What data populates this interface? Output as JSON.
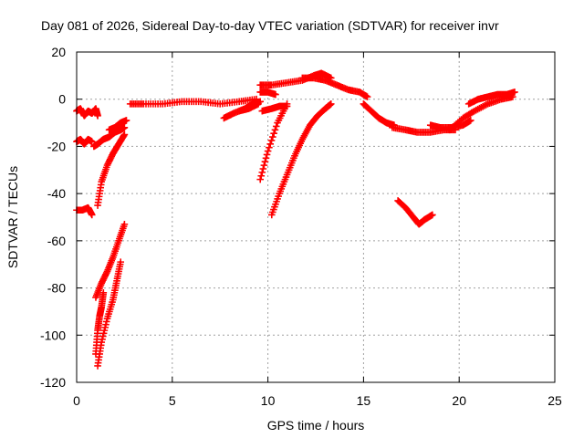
{
  "chart_data": {
    "type": "scatter",
    "title": "Day 081 of 2026, Sidereal Day-to-day VTEC variation (SDTVAR) for receiver invr",
    "xlabel": "GPS time / hours",
    "ylabel": "SDTVAR / TECUs",
    "xlim": [
      0,
      25
    ],
    "ylim": [
      -120,
      20
    ],
    "xticks": [
      0,
      5,
      10,
      15,
      20,
      25
    ],
    "yticks": [
      20,
      0,
      -20,
      -40,
      -60,
      -80,
      -100,
      -120
    ],
    "grid": true,
    "marker": "plus",
    "color": "#ff0000",
    "series": [
      {
        "name": "s1",
        "x": [
          0.0,
          0.2,
          0.4,
          0.6,
          0.8,
          1.0,
          1.1
        ],
        "y": [
          -5,
          -4,
          -7,
          -5,
          -6,
          -4,
          -7
        ]
      },
      {
        "name": "s2",
        "x": [
          0.0,
          0.2,
          0.4,
          0.6,
          0.8
        ],
        "y": [
          -18,
          -17,
          -19,
          -17,
          -18
        ]
      },
      {
        "name": "s3",
        "x": [
          0.9,
          1.1,
          1.4,
          1.7,
          2.0,
          2.3,
          2.5
        ],
        "y": [
          -20,
          -19,
          -17,
          -16,
          -14,
          -13,
          -12
        ]
      },
      {
        "name": "s4",
        "x": [
          1.1,
          1.3,
          1.6,
          1.9,
          2.2,
          2.5
        ],
        "y": [
          -45,
          -35,
          -28,
          -23,
          -19,
          -15
        ]
      },
      {
        "name": "s5",
        "x": [
          1.7,
          2.0,
          2.3,
          2.6
        ],
        "y": [
          -13,
          -12,
          -10,
          -9
        ]
      },
      {
        "name": "s6",
        "x": [
          0.0,
          0.3,
          0.6,
          0.8
        ],
        "y": [
          -47,
          -47,
          -46,
          -49
        ]
      },
      {
        "name": "s7",
        "x": [
          1.0,
          1.3,
          1.6,
          1.9,
          2.2,
          2.5
        ],
        "y": [
          -84,
          -78,
          -73,
          -67,
          -60,
          -53
        ]
      },
      {
        "name": "s8",
        "x": [
          1.1,
          1.3,
          1.6,
          1.9,
          2.1,
          2.3
        ],
        "y": [
          -113,
          -103,
          -93,
          -85,
          -77,
          -69
        ]
      },
      {
        "name": "s9",
        "x": [
          1.0,
          1.1,
          1.2,
          1.3,
          1.4
        ],
        "y": [
          -108,
          -98,
          -92,
          -88,
          -82
        ]
      },
      {
        "name": "s10",
        "x": [
          2.8,
          3.5,
          4.5,
          5.5,
          6.5,
          7.5,
          8.5,
          9.4
        ],
        "y": [
          -2,
          -2,
          -2,
          -1,
          -1,
          -2,
          -1,
          0
        ]
      },
      {
        "name": "s11",
        "x": [
          7.7,
          8.2,
          8.8,
          9.2,
          9.6
        ],
        "y": [
          -8,
          -6,
          -4,
          -2,
          -1
        ]
      },
      {
        "name": "s12",
        "x": [
          8.5,
          9.0,
          9.5
        ],
        "y": [
          -5,
          -4,
          -2
        ]
      },
      {
        "name": "s13",
        "x": [
          9.6,
          10.2,
          11.0,
          11.8,
          12.4,
          12.8,
          13.3
        ],
        "y": [
          6,
          6,
          7,
          8,
          10,
          11,
          9
        ]
      },
      {
        "name": "s14",
        "x": [
          9.6,
          10.0,
          10.4
        ],
        "y": [
          3,
          3,
          2
        ]
      },
      {
        "name": "s15",
        "x": [
          11.8,
          12.4,
          13.0,
          13.6,
          14.2,
          14.8,
          15.2
        ],
        "y": [
          9,
          9,
          8,
          6,
          4,
          3,
          1
        ]
      },
      {
        "name": "s16",
        "x": [
          15.0,
          15.4,
          15.8,
          16.2,
          16.6
        ],
        "y": [
          -2,
          -5,
          -8,
          -10,
          -11
        ]
      },
      {
        "name": "s17",
        "x": [
          16.5,
          17.2,
          17.8,
          18.5,
          19.2,
          19.8
        ],
        "y": [
          -12,
          -13,
          -14,
          -14,
          -13,
          -13
        ]
      },
      {
        "name": "s18",
        "x": [
          18.5,
          19.0,
          19.6,
          20.2,
          20.6
        ],
        "y": [
          -11,
          -12,
          -12,
          -11,
          -9
        ]
      },
      {
        "name": "s19",
        "x": [
          19.5,
          20.2,
          20.8,
          21.5,
          22.2,
          22.8
        ],
        "y": [
          -13,
          -8,
          -5,
          -2,
          0,
          1
        ]
      },
      {
        "name": "s20",
        "x": [
          20.5,
          21.0,
          21.5,
          22.0,
          22.5,
          22.9
        ],
        "y": [
          -2,
          0,
          1,
          2,
          2,
          3
        ]
      },
      {
        "name": "s21",
        "x": [
          9.6,
          10.0,
          10.5,
          11.0
        ],
        "y": [
          -34,
          -22,
          -10,
          -2
        ]
      },
      {
        "name": "s22",
        "x": [
          9.7,
          10.2,
          10.6,
          11.0
        ],
        "y": [
          -5,
          -4,
          -3,
          -3
        ]
      },
      {
        "name": "s23",
        "x": [
          10.2,
          10.6,
          11.0,
          11.4,
          11.8,
          12.2,
          12.6,
          13.0,
          13.3
        ],
        "y": [
          -49,
          -40,
          -32,
          -24,
          -17,
          -11,
          -7,
          -4,
          -2
        ]
      },
      {
        "name": "s24",
        "x": [
          16.8,
          17.2,
          17.6,
          17.9,
          18.2,
          18.6
        ],
        "y": [
          -43,
          -46,
          -50,
          -53,
          -51,
          -49
        ]
      }
    ]
  }
}
